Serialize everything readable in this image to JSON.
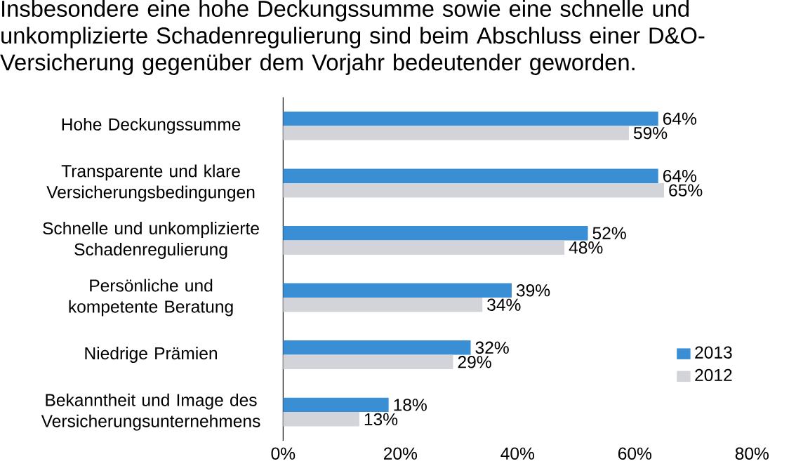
{
  "chart_data": {
    "type": "bar",
    "orientation": "horizontal",
    "title": "Insbesondere eine hohe Deckungssumme sowie eine schnelle und unkomplizierte Schadenregulierung sind beim Abschluss einer D&O-Versicherung gegenüber dem Vorjahr bedeutender geworden.",
    "categories": [
      "Hohe Deckungssumme",
      "Transparente und klare Versicherungsbedingungen",
      "Schnelle und unkomplizierte Schadenregulierung",
      "Persönliche und kompetente Beratung",
      "Niedrige Prämien",
      "Bekanntheit und Image des Versicherungsunternehmens"
    ],
    "series": [
      {
        "name": "2013",
        "color": "#3a8fd4",
        "values": [
          64,
          64,
          52,
          39,
          32,
          18
        ],
        "value_labels": [
          "64%",
          "64%",
          "52%",
          "39%",
          "32%",
          "18%"
        ]
      },
      {
        "name": "2012",
        "color": "#d3d3da",
        "values": [
          59,
          65,
          48,
          34,
          29,
          13
        ],
        "value_labels": [
          "59%",
          "65%",
          "48%",
          "34%",
          "29%",
          "13%"
        ]
      }
    ],
    "xlim": [
      0,
      80
    ],
    "xticks": [
      {
        "value": 0,
        "label": "0%"
      },
      {
        "value": 20,
        "label": "20%"
      },
      {
        "value": 40,
        "label": "40%"
      },
      {
        "value": 60,
        "label": "60%"
      },
      {
        "value": 80,
        "label": "80%"
      }
    ],
    "legend": "bottom right"
  }
}
